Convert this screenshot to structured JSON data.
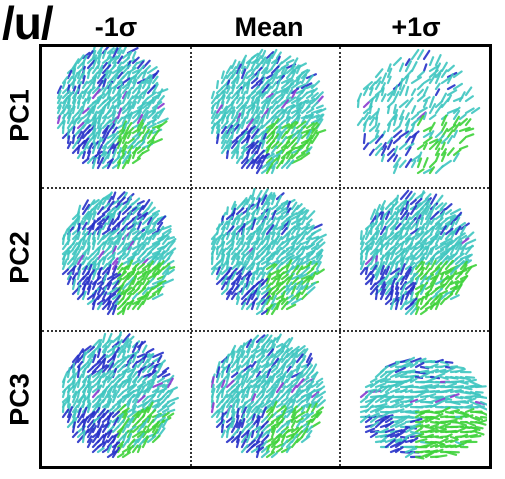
{
  "figure": {
    "phoneme_label": "/u/",
    "columns": [
      "-1σ",
      "Mean",
      "+1σ"
    ],
    "rows": [
      "PC1",
      "PC2",
      "PC3"
    ],
    "colors": {
      "cyan": "#3fc6c0",
      "green": "#3ed23a",
      "blue": "#2630c8",
      "purple": "#8a3ad0",
      "border": "#000000"
    },
    "cells": [
      {
        "row": "PC1",
        "col": "-1σ",
        "shape": "tall-lean",
        "blue": 0.35,
        "green": 0.35
      },
      {
        "row": "PC1",
        "col": "Mean",
        "shape": "round",
        "blue": 0.25,
        "green": 0.4
      },
      {
        "row": "PC1",
        "col": "+1σ",
        "shape": "sparse",
        "blue": 0.4,
        "green": 0.55
      },
      {
        "row": "PC2",
        "col": "-1σ",
        "shape": "round",
        "blue": 0.55,
        "green": 0.5
      },
      {
        "row": "PC2",
        "col": "Mean",
        "shape": "round",
        "blue": 0.25,
        "green": 0.4
      },
      {
        "row": "PC2",
        "col": "+1σ",
        "shape": "round",
        "blue": 0.35,
        "green": 0.6
      },
      {
        "row": "PC3",
        "col": "-1σ",
        "shape": "round",
        "blue": 0.6,
        "green": 0.3
      },
      {
        "row": "PC3",
        "col": "Mean",
        "shape": "round",
        "blue": 0.25,
        "green": 0.4
      },
      {
        "row": "PC3",
        "col": "+1σ",
        "shape": "wide",
        "blue": 0.3,
        "green": 0.65
      }
    ]
  }
}
